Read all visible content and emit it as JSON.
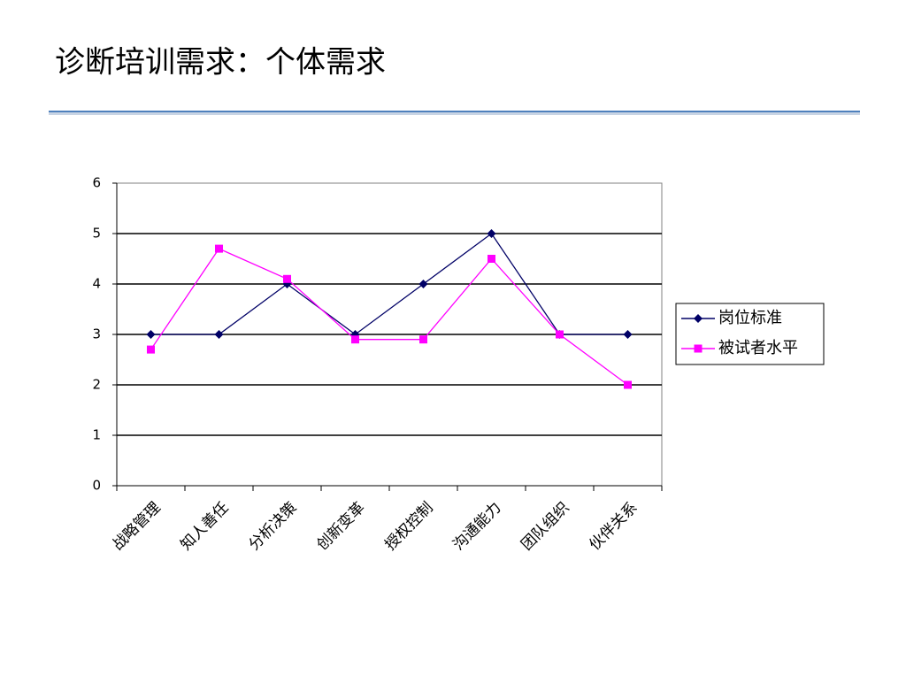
{
  "chart_data": {
    "type": "line",
    "title": "诊断培训需求：个体需求",
    "categories": [
      "战略管理",
      "知人善任",
      "分析决策",
      "创新变革",
      "授权控制",
      "沟通能力",
      "团队组织",
      "伙伴关系"
    ],
    "series": [
      {
        "name": "岗位标准",
        "color": "#000066",
        "marker": "diamond",
        "values": [
          3,
          3,
          4,
          3,
          4,
          5,
          3,
          3
        ]
      },
      {
        "name": "被试者水平",
        "color": "#ff00ff",
        "marker": "square",
        "values": [
          2.7,
          4.7,
          4.1,
          2.9,
          2.9,
          4.5,
          3,
          2
        ]
      }
    ],
    "ylim": [
      0,
      6
    ],
    "yticks": [
      0,
      1,
      2,
      3,
      4,
      5,
      6
    ],
    "grid": true,
    "legend": "right"
  }
}
